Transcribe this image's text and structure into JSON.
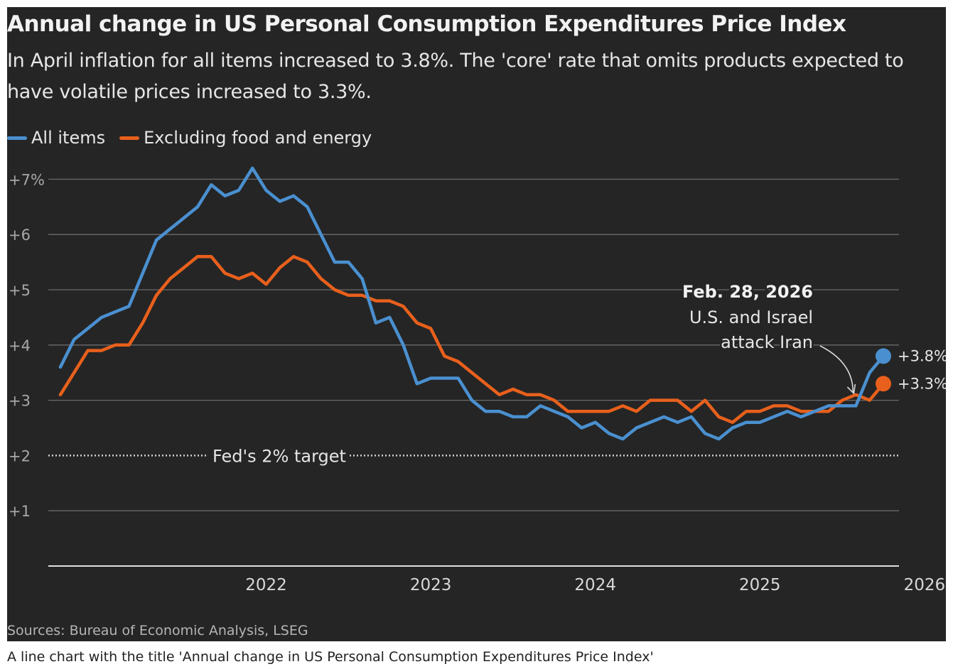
{
  "title": "Annual change in US Personal Consumption Expenditures Price Index",
  "subtitle": "In April inflation for all items increased to 3.8%. The 'core' rate that omits products expected to have volatile prices increased to 3.3%.",
  "source": "Sources: Bureau of Economic Analysis, LSEG",
  "caption": "A line chart with the title 'Annual change in US Personal Consumption Expenditures Price Index'",
  "colors": {
    "background": "#252525",
    "all_items": "#4a90d0",
    "core": "#e8601c",
    "grid": "#6a6a6a",
    "text": "#e6e6e6"
  },
  "chart_data": {
    "type": "line",
    "title": "Annual change in US Personal Consumption Expenditures Price Index",
    "xlabel": "",
    "ylabel": "",
    "x_ticks": [
      "2022",
      "2023",
      "2024",
      "2025",
      "2026"
    ],
    "y_ticks": [
      "+7%",
      "+6",
      "+5",
      "+4",
      "+3",
      "+2",
      "+1"
    ],
    "y_tick_values": [
      7,
      6,
      5,
      4,
      3,
      2,
      1
    ],
    "ylim": [
      0,
      7.4
    ],
    "xlim": [
      "2021-04",
      "2026-04"
    ],
    "grid": true,
    "legend_position": "top-left",
    "x": [
      "2021-04",
      "2021-05",
      "2021-06",
      "2021-07",
      "2021-08",
      "2021-09",
      "2021-10",
      "2021-11",
      "2021-12",
      "2022-01",
      "2022-02",
      "2022-03",
      "2022-04",
      "2022-05",
      "2022-06",
      "2022-07",
      "2022-08",
      "2022-09",
      "2022-10",
      "2022-11",
      "2022-12",
      "2023-01",
      "2023-02",
      "2023-03",
      "2023-04",
      "2023-05",
      "2023-06",
      "2023-07",
      "2023-08",
      "2023-09",
      "2023-10",
      "2023-11",
      "2023-12",
      "2024-01",
      "2024-02",
      "2024-03",
      "2024-04",
      "2024-05",
      "2024-06",
      "2024-07",
      "2024-08",
      "2024-09",
      "2024-10",
      "2024-11",
      "2024-12",
      "2025-01",
      "2025-02",
      "2025-03",
      "2025-04",
      "2025-05",
      "2025-06",
      "2025-07",
      "2025-08",
      "2025-09",
      "2025-10",
      "2025-11",
      "2025-12",
      "2026-01",
      "2026-02",
      "2026-03",
      "2026-04"
    ],
    "series": [
      {
        "name": "All items",
        "values": [
          3.6,
          4.1,
          4.3,
          4.5,
          4.6,
          4.7,
          5.3,
          5.9,
          6.1,
          6.3,
          6.5,
          6.9,
          6.7,
          6.8,
          7.2,
          6.8,
          6.6,
          6.7,
          6.5,
          6.0,
          5.5,
          5.5,
          5.2,
          4.4,
          4.5,
          4.0,
          3.3,
          3.4,
          3.4,
          3.4,
          3.0,
          2.8,
          2.8,
          2.7,
          2.7,
          2.9,
          2.8,
          2.7,
          2.5,
          2.6,
          2.4,
          2.3,
          2.5,
          2.6,
          2.7,
          2.6,
          2.7,
          2.4,
          2.3,
          2.5,
          2.6,
          2.6,
          2.7,
          2.8,
          2.7,
          2.8,
          2.9,
          2.9,
          2.9,
          3.5,
          3.8
        ],
        "end_label": "+3.8%"
      },
      {
        "name": "Excluding food and energy",
        "values": [
          3.1,
          3.5,
          3.9,
          3.9,
          4.0,
          4.0,
          4.4,
          4.9,
          5.2,
          5.4,
          5.6,
          5.6,
          5.3,
          5.2,
          5.3,
          5.1,
          5.4,
          5.6,
          5.5,
          5.2,
          5.0,
          4.9,
          4.9,
          4.8,
          4.8,
          4.7,
          4.4,
          4.3,
          3.8,
          3.7,
          3.5,
          3.3,
          3.1,
          3.2,
          3.1,
          3.1,
          3.0,
          2.8,
          2.8,
          2.8,
          2.8,
          2.9,
          2.8,
          3.0,
          3.0,
          3.0,
          2.8,
          3.0,
          2.7,
          2.6,
          2.8,
          2.8,
          2.9,
          2.9,
          2.8,
          2.8,
          2.8,
          3.0,
          3.1,
          3.0,
          3.3
        ],
        "end_label": "+3.3%"
      }
    ],
    "reference_line": {
      "value": 2,
      "label": "Fed's 2% target"
    },
    "annotation": {
      "date": "2026-02",
      "title": "Feb. 28, 2026",
      "lines": [
        "U.S. and Israel",
        "attack Iran"
      ]
    }
  }
}
